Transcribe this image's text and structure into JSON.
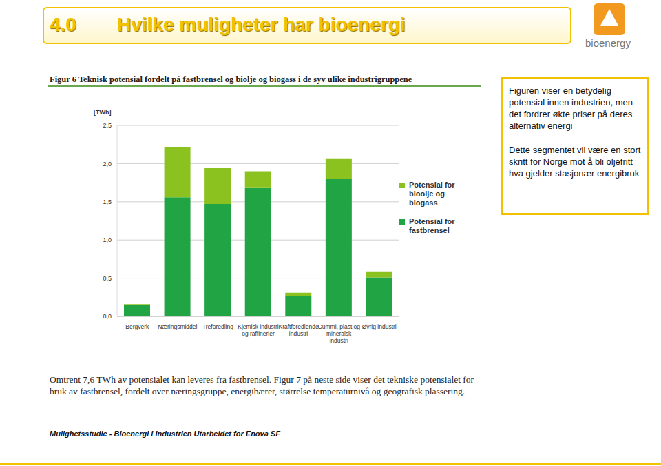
{
  "slide": {
    "number": "4.0",
    "title": "Hvilke muligheter har bioenergi",
    "logo": "bioenergy",
    "figure_title": "Figur 6 Teknisk potensial fordelt på fastbrensel og biolje og biogass i de syv ulike industrigruppene",
    "callout": [
      "Figuren viser en betydelig potensial innen industrien, men det fordrer økte priser på deres alternativ energi",
      "Dette segmentet vil være en stort skritt for Norge mot å bli oljefritt hva gjelder stasjonær energibruk"
    ],
    "caption": "Omtrent 7,6 TWh av potensialet kan leveres fra fastbrensel. Figur 7 på neste side viser det tekniske potensialet for bruk av fastbrensel, fordelt over næringsgruppe, energibærer, størrelse temperaturnivå og geografisk plassering.",
    "footer": "Mulighetsstudie - Bioenergi i Industrien Utarbeidet for Enova SF"
  },
  "chart_data": {
    "type": "bar",
    "stacked": true,
    "y_label": "[TWh]",
    "categories": [
      "Bergverk",
      "Næringsmiddel",
      "Treforedling",
      "Kjemisk industri og raffinerier",
      "Kraftforedlende industri",
      "Gummi, plast og mineralsk industri",
      "Øvrig industri"
    ],
    "series": [
      {
        "name": "Potensial for fastbrensel",
        "color": "#21a444",
        "values": [
          0.15,
          1.56,
          1.47,
          1.69,
          0.27,
          1.8,
          0.51
        ]
      },
      {
        "name": "Potensial for bioolje og biogass",
        "color": "#8cc21f",
        "values": [
          0.01,
          0.66,
          0.48,
          0.21,
          0.04,
          0.27,
          0.08
        ]
      }
    ],
    "ylim": [
      0,
      2.5
    ],
    "yticks": [
      {
        "value": 0,
        "label": "0,0"
      },
      {
        "value": 0.5,
        "label": "0,5"
      },
      {
        "value": 1,
        "label": "1,0"
      },
      {
        "value": 1.5,
        "label": "1,5"
      },
      {
        "value": 2,
        "label": "2,0"
      },
      {
        "value": 2.5,
        "label": "2,5"
      }
    ],
    "grid": true,
    "legend": "right"
  }
}
